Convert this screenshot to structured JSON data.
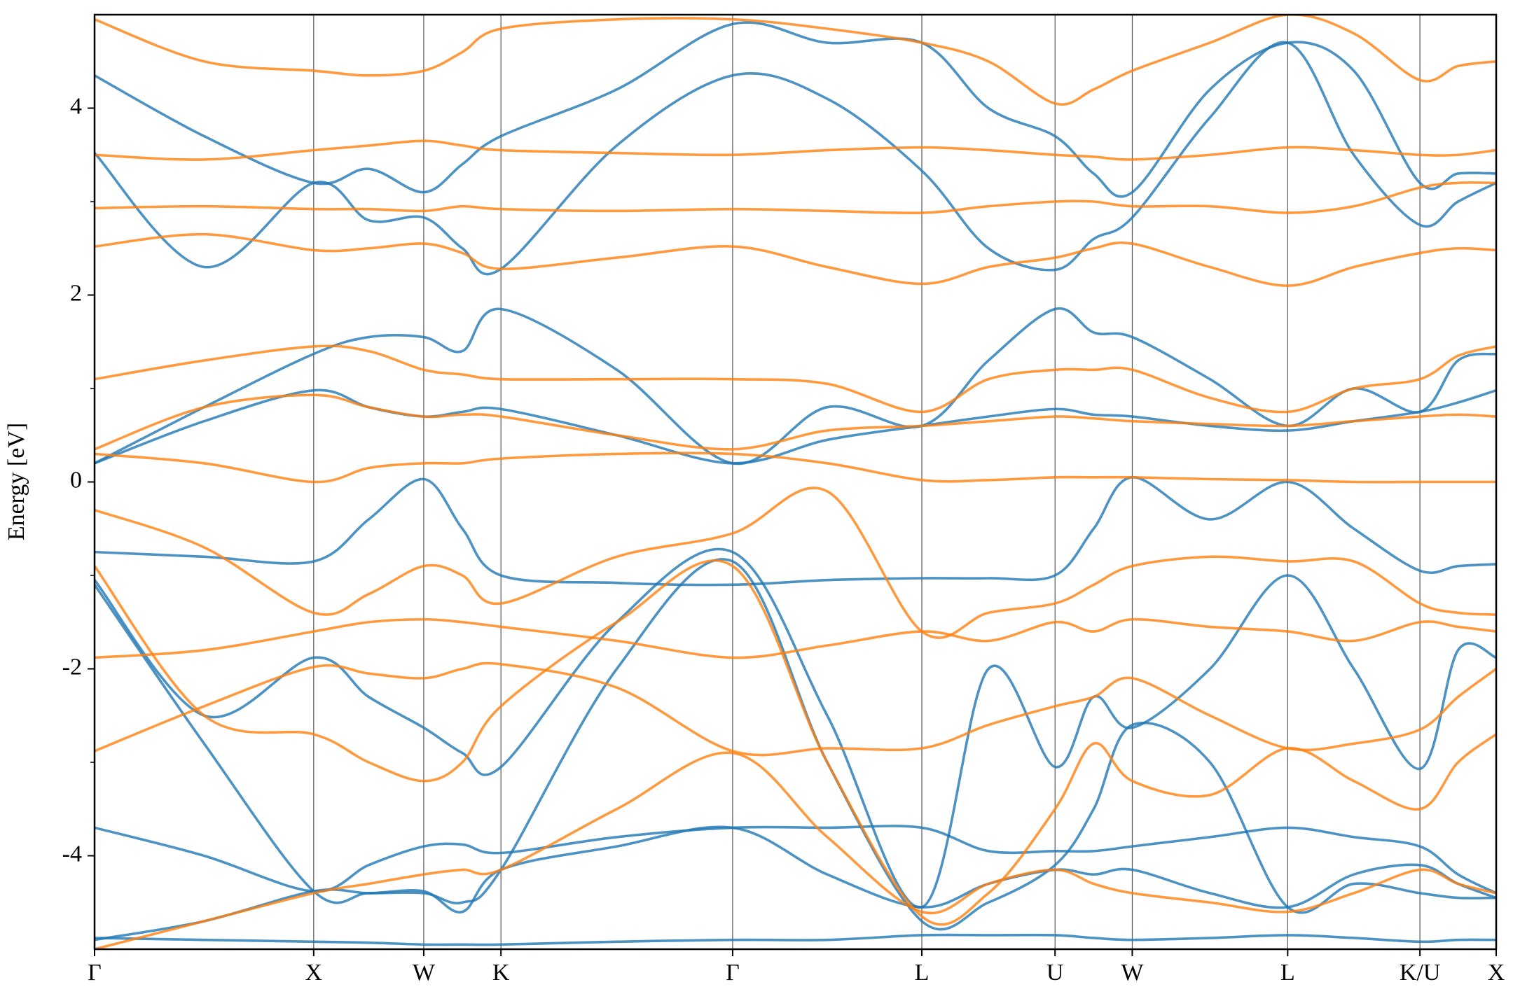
{
  "chart_data": {
    "type": "line",
    "ylabel": "Energy [eV]",
    "x": [
      0,
      1.135,
      2.27,
      2.84,
      3.41,
      3.81,
      4.21,
      5.41,
      6.61,
      7.59,
      8.57,
      9.26,
      9.95,
      10.35,
      10.75,
      11.555,
      12.36,
      13.045,
      13.73,
      14.125,
      14.52
    ],
    "xlim": [
      0,
      14.52
    ],
    "xticks": [
      {
        "value": 0,
        "label": "Γ"
      },
      {
        "value": 2.27,
        "label": "X"
      },
      {
        "value": 3.41,
        "label": "W"
      },
      {
        "value": 4.21,
        "label": "K"
      },
      {
        "value": 6.61,
        "label": "Γ"
      },
      {
        "value": 8.57,
        "label": "L"
      },
      {
        "value": 9.95,
        "label": "U"
      },
      {
        "value": 10.75,
        "label": "W"
      },
      {
        "value": 12.36,
        "label": "L"
      },
      {
        "value": 13.73,
        "label": "K/U"
      },
      {
        "value": 14.52,
        "label": "X"
      }
    ],
    "ylim": [
      -5,
      5
    ],
    "yticks": [
      -4,
      -2,
      0,
      2,
      4
    ],
    "yminorticks": [
      -3,
      -1,
      1,
      3
    ],
    "grid": true,
    "alpha": 0.8,
    "series": [
      {
        "color": "#1f77b4",
        "values": [
          -4.88,
          -4.9,
          -4.92,
          -4.93,
          -4.95,
          -4.95,
          -4.95,
          -4.92,
          -4.9,
          -4.9,
          -4.85,
          -4.85,
          -4.85,
          -4.88,
          -4.9,
          -4.88,
          -4.85,
          -4.88,
          -4.92,
          -4.9,
          -4.9
        ]
      },
      {
        "color": "#1f77b4",
        "values": [
          -3.7,
          -4.0,
          -4.38,
          -4.1,
          -3.9,
          -3.88,
          -3.97,
          -3.8,
          -3.7,
          -3.7,
          -3.7,
          -3.95,
          -3.95,
          -3.95,
          -3.9,
          -3.8,
          -3.7,
          -3.8,
          -3.9,
          -4.2,
          -4.4
        ]
      },
      {
        "color": "#1f77b4",
        "values": [
          -4.9,
          -4.7,
          -4.38,
          -4.4,
          -4.38,
          -4.6,
          -4.15,
          -3.9,
          -3.7,
          -4.2,
          -4.55,
          -4.3,
          -4.15,
          -4.2,
          -4.15,
          -4.4,
          -4.55,
          -4.2,
          -4.1,
          -4.3,
          -4.45
        ]
      },
      {
        "color": "#1f77b4",
        "values": [
          -0.75,
          -0.8,
          -0.85,
          -0.4,
          0.03,
          -0.5,
          -1.0,
          -1.08,
          -1.1,
          -1.05,
          -1.03,
          -1.03,
          -1.0,
          -0.5,
          0.05,
          -0.4,
          0.0,
          -0.5,
          -0.95,
          -0.9,
          -0.88
        ]
      },
      {
        "color": "#1f77b4",
        "values": [
          0.2,
          0.65,
          0.98,
          0.8,
          0.7,
          0.75,
          0.78,
          0.5,
          0.2,
          0.45,
          0.6,
          0.7,
          0.78,
          0.72,
          0.7,
          0.6,
          0.55,
          0.65,
          0.75,
          0.85,
          0.98
        ]
      },
      {
        "color": "#1f77b4",
        "values": [
          0.2,
          0.8,
          1.37,
          1.55,
          1.55,
          1.4,
          1.85,
          1.2,
          0.2,
          0.8,
          0.6,
          1.3,
          1.85,
          1.6,
          1.55,
          1.1,
          0.6,
          1.0,
          0.75,
          1.3,
          1.37
        ]
      },
      {
        "color": "#1f77b4",
        "values": [
          -1.05,
          -2.5,
          -1.88,
          -2.3,
          -2.63,
          -2.9,
          -3.05,
          -1.5,
          -0.75,
          -2.5,
          -4.55,
          -2.0,
          -3.05,
          -2.3,
          -2.63,
          -2.0,
          -1.0,
          -2.0,
          -3.07,
          -1.8,
          -1.88
        ]
      },
      {
        "color": "#1f77b4",
        "values": [
          3.52,
          2.3,
          3.2,
          2.8,
          2.83,
          2.5,
          2.28,
          3.6,
          4.35,
          4.1,
          3.33,
          2.5,
          2.27,
          2.6,
          2.83,
          3.9,
          4.7,
          3.5,
          2.75,
          3.0,
          3.2
        ]
      },
      {
        "color": "#1f77b4",
        "values": [
          4.35,
          3.7,
          3.2,
          3.35,
          3.1,
          3.4,
          3.7,
          4.2,
          4.9,
          4.7,
          4.7,
          4.0,
          3.7,
          3.3,
          3.1,
          4.2,
          4.7,
          4.4,
          3.2,
          3.3,
          3.3
        ]
      },
      {
        "color": "#1f77b4",
        "values": [
          -1.1,
          -2.8,
          -4.38,
          -4.4,
          -4.4,
          -4.5,
          -4.15,
          -2.0,
          -0.85,
          -3.0,
          -4.7,
          -4.5,
          -4.1,
          -3.5,
          -2.6,
          -3.0,
          -4.55,
          -4.3,
          -4.4,
          -4.45,
          -4.45
        ]
      },
      {
        "color": "#ff7f0e",
        "values": [
          2.93,
          2.95,
          2.92,
          2.92,
          2.9,
          2.95,
          2.92,
          2.9,
          2.92,
          2.9,
          2.88,
          2.95,
          3.0,
          3.0,
          2.95,
          2.95,
          2.88,
          2.95,
          3.15,
          3.2,
          3.2
        ]
      },
      {
        "color": "#ff7f0e",
        "values": [
          3.5,
          3.45,
          3.55,
          3.6,
          3.65,
          3.6,
          3.55,
          3.52,
          3.5,
          3.55,
          3.58,
          3.55,
          3.5,
          3.48,
          3.45,
          3.5,
          3.58,
          3.55,
          3.5,
          3.5,
          3.55
        ]
      },
      {
        "color": "#ff7f0e",
        "values": [
          2.52,
          2.65,
          2.48,
          2.5,
          2.55,
          2.45,
          2.28,
          2.4,
          2.52,
          2.3,
          2.12,
          2.3,
          2.4,
          2.5,
          2.55,
          2.3,
          2.1,
          2.3,
          2.45,
          2.5,
          2.48
        ]
      },
      {
        "color": "#ff7f0e",
        "values": [
          1.1,
          1.3,
          1.45,
          1.4,
          1.2,
          1.15,
          1.1,
          1.1,
          1.1,
          1.05,
          0.75,
          1.1,
          1.2,
          1.2,
          1.2,
          0.9,
          0.75,
          1.0,
          1.1,
          1.35,
          1.45
        ]
      },
      {
        "color": "#ff7f0e",
        "values": [
          0.35,
          0.8,
          0.93,
          0.8,
          0.7,
          0.72,
          0.7,
          0.5,
          0.35,
          0.55,
          0.6,
          0.65,
          0.7,
          0.68,
          0.65,
          0.62,
          0.6,
          0.65,
          0.7,
          0.72,
          0.7
        ]
      },
      {
        "color": "#ff7f0e",
        "values": [
          0.3,
          0.2,
          0.0,
          0.15,
          0.2,
          0.2,
          0.25,
          0.3,
          0.3,
          0.2,
          0.02,
          0.02,
          0.05,
          0.05,
          0.05,
          0.03,
          0.02,
          0.0,
          0.0,
          0.0,
          0.0
        ]
      },
      {
        "color": "#ff7f0e",
        "values": [
          -0.3,
          -0.7,
          -1.4,
          -1.2,
          -0.9,
          -1.0,
          -1.3,
          -0.8,
          -0.55,
          -0.1,
          -1.6,
          -1.4,
          -1.3,
          -1.1,
          -0.9,
          -0.8,
          -0.85,
          -0.85,
          -1.3,
          -1.4,
          -1.42
        ]
      },
      {
        "color": "#ff7f0e",
        "values": [
          -1.88,
          -1.8,
          -1.6,
          -1.5,
          -1.47,
          -1.5,
          -1.55,
          -1.7,
          -1.88,
          -1.75,
          -1.6,
          -1.7,
          -1.5,
          -1.6,
          -1.47,
          -1.55,
          -1.6,
          -1.7,
          -1.5,
          -1.55,
          -1.6
        ]
      },
      {
        "color": "#ff7f0e",
        "values": [
          -2.88,
          -2.4,
          -1.98,
          -2.05,
          -2.1,
          -2.0,
          -1.95,
          -2.2,
          -2.88,
          -2.85,
          -2.85,
          -2.6,
          -2.4,
          -2.3,
          -2.1,
          -2.5,
          -2.85,
          -2.8,
          -2.65,
          -2.3,
          -2.0
        ]
      },
      {
        "color": "#ff7f0e",
        "values": [
          -0.9,
          -2.5,
          -2.7,
          -3.0,
          -3.2,
          -3.0,
          -2.4,
          -1.5,
          -0.9,
          -3.0,
          -4.65,
          -4.4,
          -3.5,
          -2.8,
          -3.2,
          -3.35,
          -2.85,
          -3.2,
          -3.5,
          -3.0,
          -2.7
        ]
      },
      {
        "color": "#ff7f0e",
        "values": [
          4.95,
          4.5,
          4.4,
          4.35,
          4.4,
          4.6,
          4.85,
          4.95,
          4.95,
          4.85,
          4.7,
          4.5,
          4.05,
          4.2,
          4.4,
          4.7,
          5.0,
          4.8,
          4.3,
          4.45,
          4.5
        ]
      },
      {
        "color": "#ff7f0e",
        "values": [
          -5.0,
          -4.7,
          -4.4,
          -4.3,
          -4.2,
          -4.15,
          -4.15,
          -3.5,
          -2.9,
          -3.8,
          -4.6,
          -4.3,
          -4.15,
          -4.3,
          -4.4,
          -4.5,
          -4.6,
          -4.4,
          -4.15,
          -4.3,
          -4.4
        ]
      }
    ]
  }
}
